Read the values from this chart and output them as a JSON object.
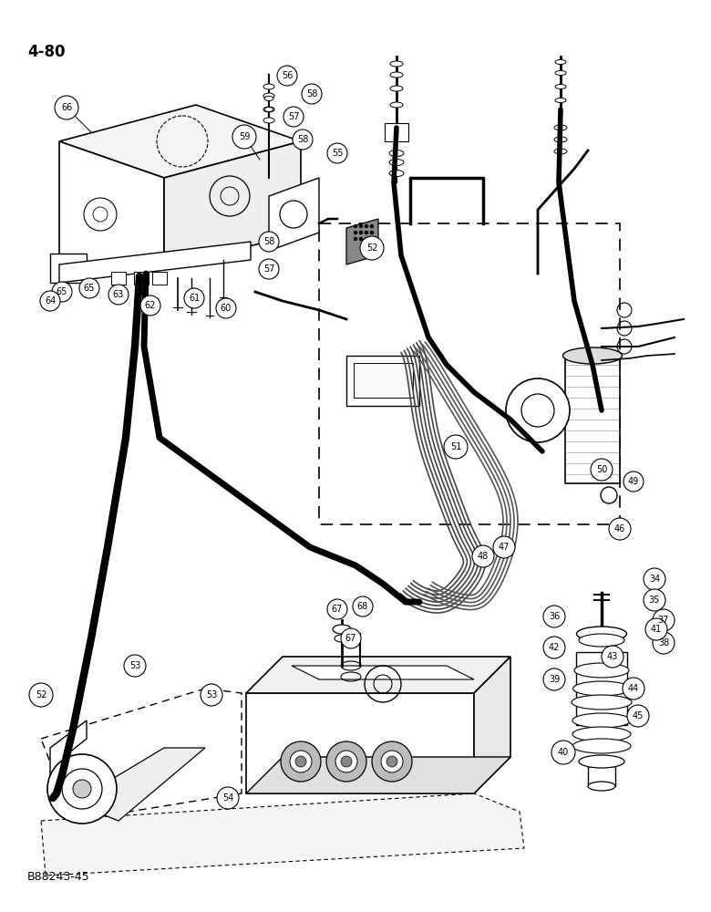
{
  "page_label": "4-80",
  "bottom_label": "B88243-45",
  "bg": "#ffffff",
  "lc": "#000000",
  "fw": 7.8,
  "fh": 10.0,
  "dpi": 100
}
